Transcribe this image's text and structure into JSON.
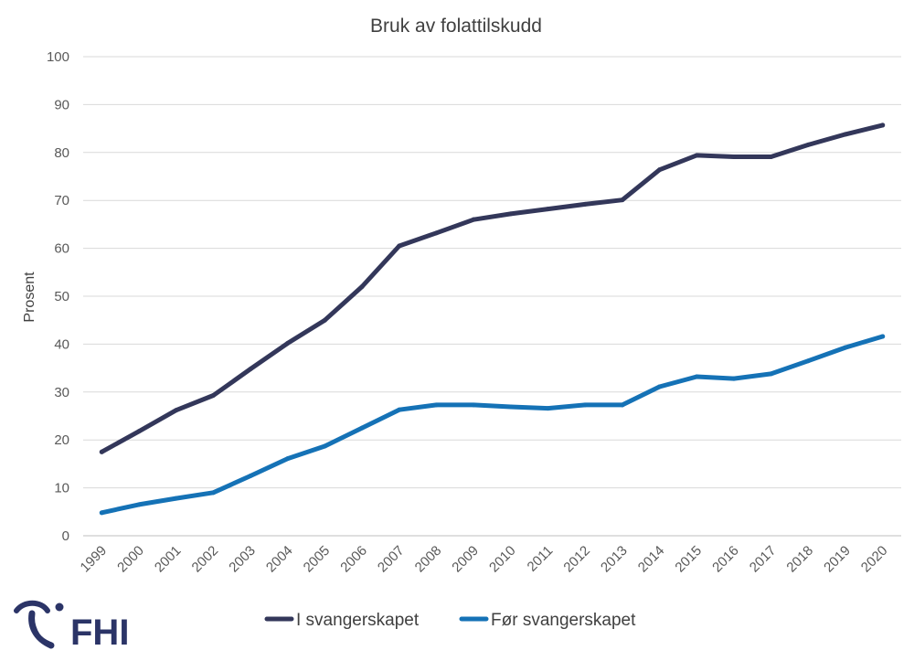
{
  "chart_data": {
    "type": "line",
    "title": "Bruk av folattilskudd",
    "xlabel": "",
    "ylabel": "Prosent",
    "ylim": [
      0,
      100
    ],
    "yticks": [
      0,
      10,
      20,
      30,
      40,
      50,
      60,
      70,
      80,
      90,
      100
    ],
    "grid": true,
    "legend_position": "bottom",
    "categories": [
      "1999",
      "2000",
      "2001",
      "2002",
      "2003",
      "2004",
      "2005",
      "2006",
      "2007",
      "2008",
      "2009",
      "2010",
      "2011",
      "2012",
      "2013",
      "2014",
      "2015",
      "2016",
      "2017",
      "2018",
      "2019",
      "2020"
    ],
    "series": [
      {
        "name": "I svangerskapet",
        "color": "#33375a",
        "values": [
          17.5,
          21.8,
          26.2,
          29.3,
          34.8,
          40.2,
          45.0,
          52.0,
          60.5,
          63.2,
          66.0,
          67.2,
          68.2,
          69.2,
          70.1,
          76.4,
          79.4,
          79.1,
          79.1,
          81.6,
          83.8,
          85.7
        ]
      },
      {
        "name": "Før svangerskapet",
        "color": "#1572b6",
        "values": [
          4.8,
          6.5,
          7.8,
          9.0,
          12.5,
          16.1,
          18.7,
          22.5,
          26.3,
          27.3,
          27.3,
          26.9,
          26.6,
          27.3,
          27.3,
          31.1,
          33.2,
          32.8,
          33.8,
          36.5,
          39.3,
          41.6
        ]
      }
    ]
  },
  "logo": {
    "text": "FHI",
    "color": "#2b3467",
    "icon": "fhi-logo-icon"
  }
}
